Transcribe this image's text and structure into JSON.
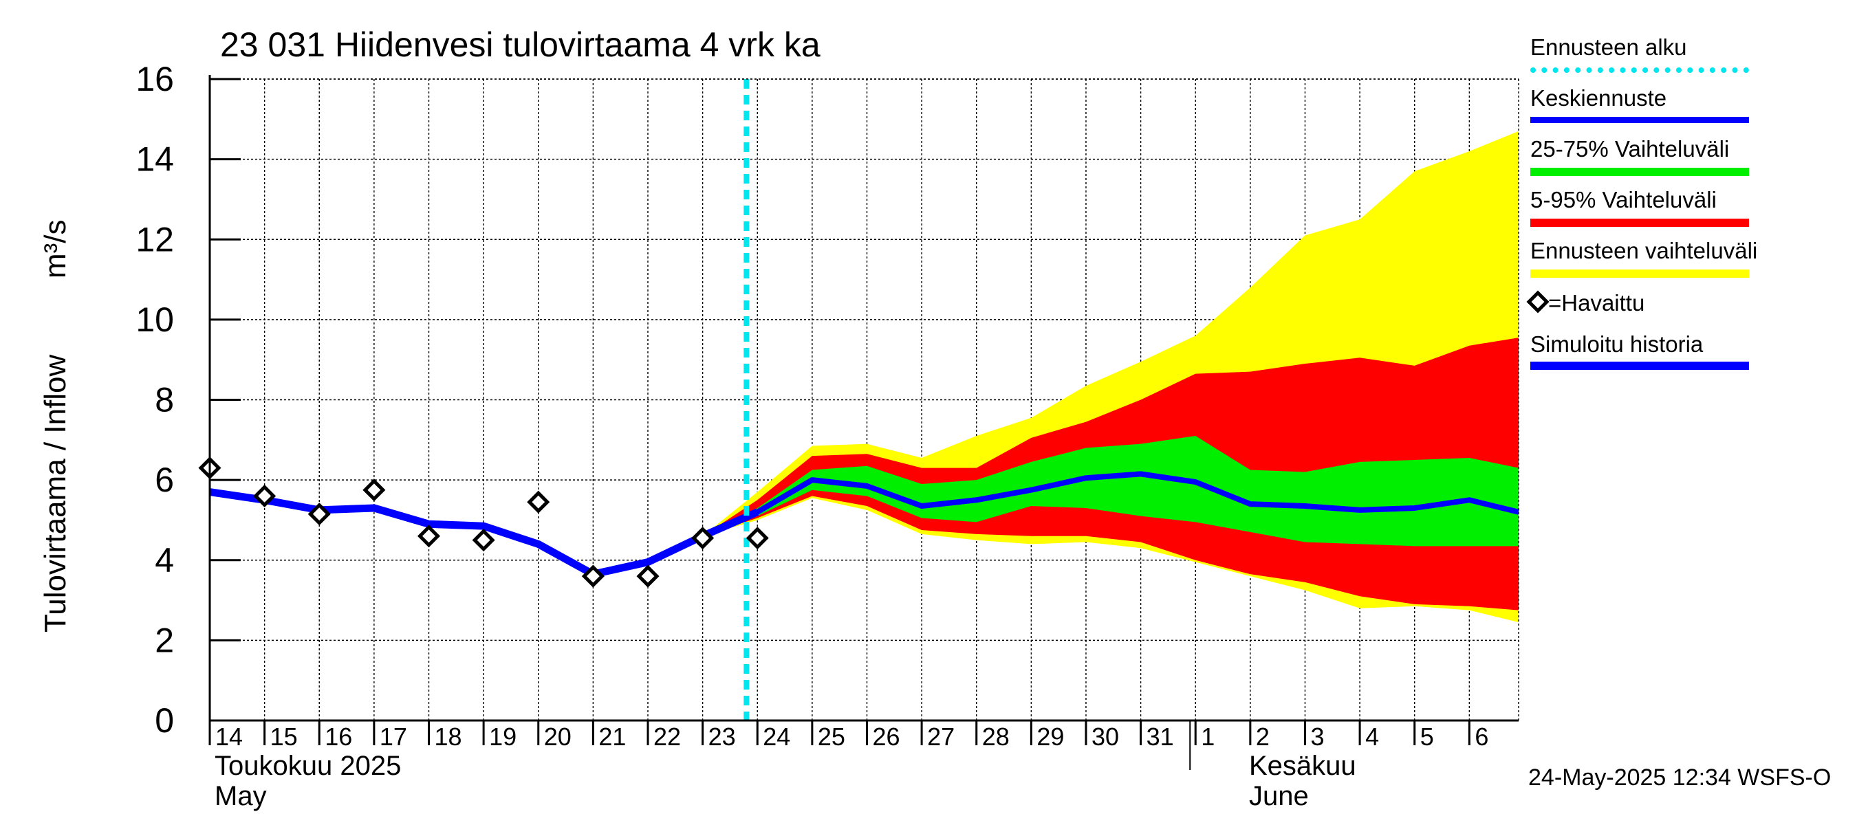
{
  "chart_data": {
    "type": "line",
    "title": "23 031 Hiidenvesi tulovirtaama 4 vrk ka",
    "ylabel": "Tulovirtaama / Inflow",
    "yunit": "m³/s",
    "ylim": [
      0,
      16
    ],
    "yticks": [
      "0",
      "2",
      "4",
      "6",
      "8",
      "10",
      "12",
      "14",
      "16"
    ],
    "grid": true,
    "x_days": [
      "14",
      "15",
      "16",
      "17",
      "18",
      "19",
      "20",
      "21",
      "22",
      "23",
      "24",
      "25",
      "26",
      "27",
      "28",
      "29",
      "30",
      "31",
      "1",
      "2",
      "3",
      "4",
      "5",
      "6"
    ],
    "month_labels": {
      "may_fi": "Toukokuu  2025",
      "may_en": "May",
      "june_fi": "Kesäkuu",
      "june_en": "June"
    },
    "forecast_start_day": "24",
    "observed": {
      "name": "=Havaittu",
      "days": [
        "14",
        "15",
        "16",
        "17",
        "18",
        "19",
        "20",
        "21",
        "22",
        "23",
        "24"
      ],
      "values": [
        6.3,
        5.6,
        5.15,
        5.75,
        4.6,
        4.5,
        5.45,
        3.6,
        3.6,
        4.55,
        4.55
      ]
    },
    "simulated_history": {
      "name": "Simuloitu historia",
      "days": [
        "14",
        "15",
        "16",
        "17",
        "18",
        "19",
        "20",
        "21",
        "22",
        "23",
        "24"
      ],
      "values": [
        5.7,
        5.5,
        5.25,
        5.3,
        4.9,
        4.85,
        4.4,
        3.65,
        3.95,
        4.6,
        5.2
      ]
    },
    "forecast_days": [
      "23",
      "24",
      "25",
      "26",
      "27",
      "28",
      "29",
      "30",
      "31",
      "1",
      "2",
      "3",
      "4",
      "5",
      "6",
      "6.9"
    ],
    "mean_forecast": {
      "name": "Keskiennuste",
      "values": [
        4.6,
        5.2,
        6.0,
        5.85,
        5.35,
        5.5,
        5.75,
        6.05,
        6.15,
        5.95,
        5.4,
        5.35,
        5.25,
        5.3,
        5.5,
        5.2
      ]
    },
    "band_25_75": {
      "name": "25-75% Vaihteluväli",
      "upper": [
        4.6,
        5.3,
        6.25,
        6.35,
        5.9,
        6.0,
        6.45,
        6.8,
        6.9,
        7.1,
        6.25,
        6.2,
        6.45,
        6.5,
        6.55,
        6.3
      ],
      "lower": [
        4.6,
        5.1,
        5.75,
        5.6,
        5.05,
        4.95,
        5.35,
        5.3,
        5.1,
        4.95,
        4.7,
        4.45,
        4.4,
        4.35,
        4.35,
        4.35
      ]
    },
    "band_5_95": {
      "name": "5-95% Vaihteluväli",
      "upper": [
        4.6,
        5.5,
        6.6,
        6.65,
        6.3,
        6.3,
        7.05,
        7.45,
        8.0,
        8.65,
        8.7,
        8.9,
        9.05,
        8.85,
        9.35,
        9.55
      ],
      "lower": [
        4.6,
        5.05,
        5.6,
        5.35,
        4.75,
        4.65,
        4.6,
        4.6,
        4.45,
        4.0,
        3.65,
        3.45,
        3.1,
        2.9,
        2.85,
        2.75
      ]
    },
    "band_total": {
      "name": "Ennusteen vaihteluväli",
      "upper": [
        4.6,
        5.7,
        6.85,
        6.9,
        6.55,
        7.1,
        7.55,
        8.35,
        8.95,
        9.6,
        10.8,
        12.1,
        12.5,
        13.7,
        14.2,
        14.7
      ],
      "lower": [
        4.6,
        5.0,
        5.55,
        5.25,
        4.65,
        4.5,
        4.4,
        4.45,
        4.3,
        3.95,
        3.6,
        3.25,
        2.8,
        2.85,
        2.75,
        2.45
      ]
    }
  },
  "legend": {
    "forecast_start": "Ennusteen alku",
    "mean_forecast": "Keskiennuste",
    "band_25_75": "25-75% Vaihteluväli",
    "band_5_95": "5-95% Vaihteluväli",
    "band_total": "Ennusteen vaihteluväli",
    "observed": "=Havaittu",
    "simulated": "Simuloitu historia"
  },
  "colors": {
    "forecast_start": "#00e5ee",
    "mean_forecast": "#0000ff",
    "band_25_75": "#00ee00",
    "band_5_95": "#ff0000",
    "band_total": "#ffff00",
    "simulated": "#0000ff",
    "grid": "#000000"
  },
  "timestamp": "24-May-2025 12:34 WSFS-O"
}
